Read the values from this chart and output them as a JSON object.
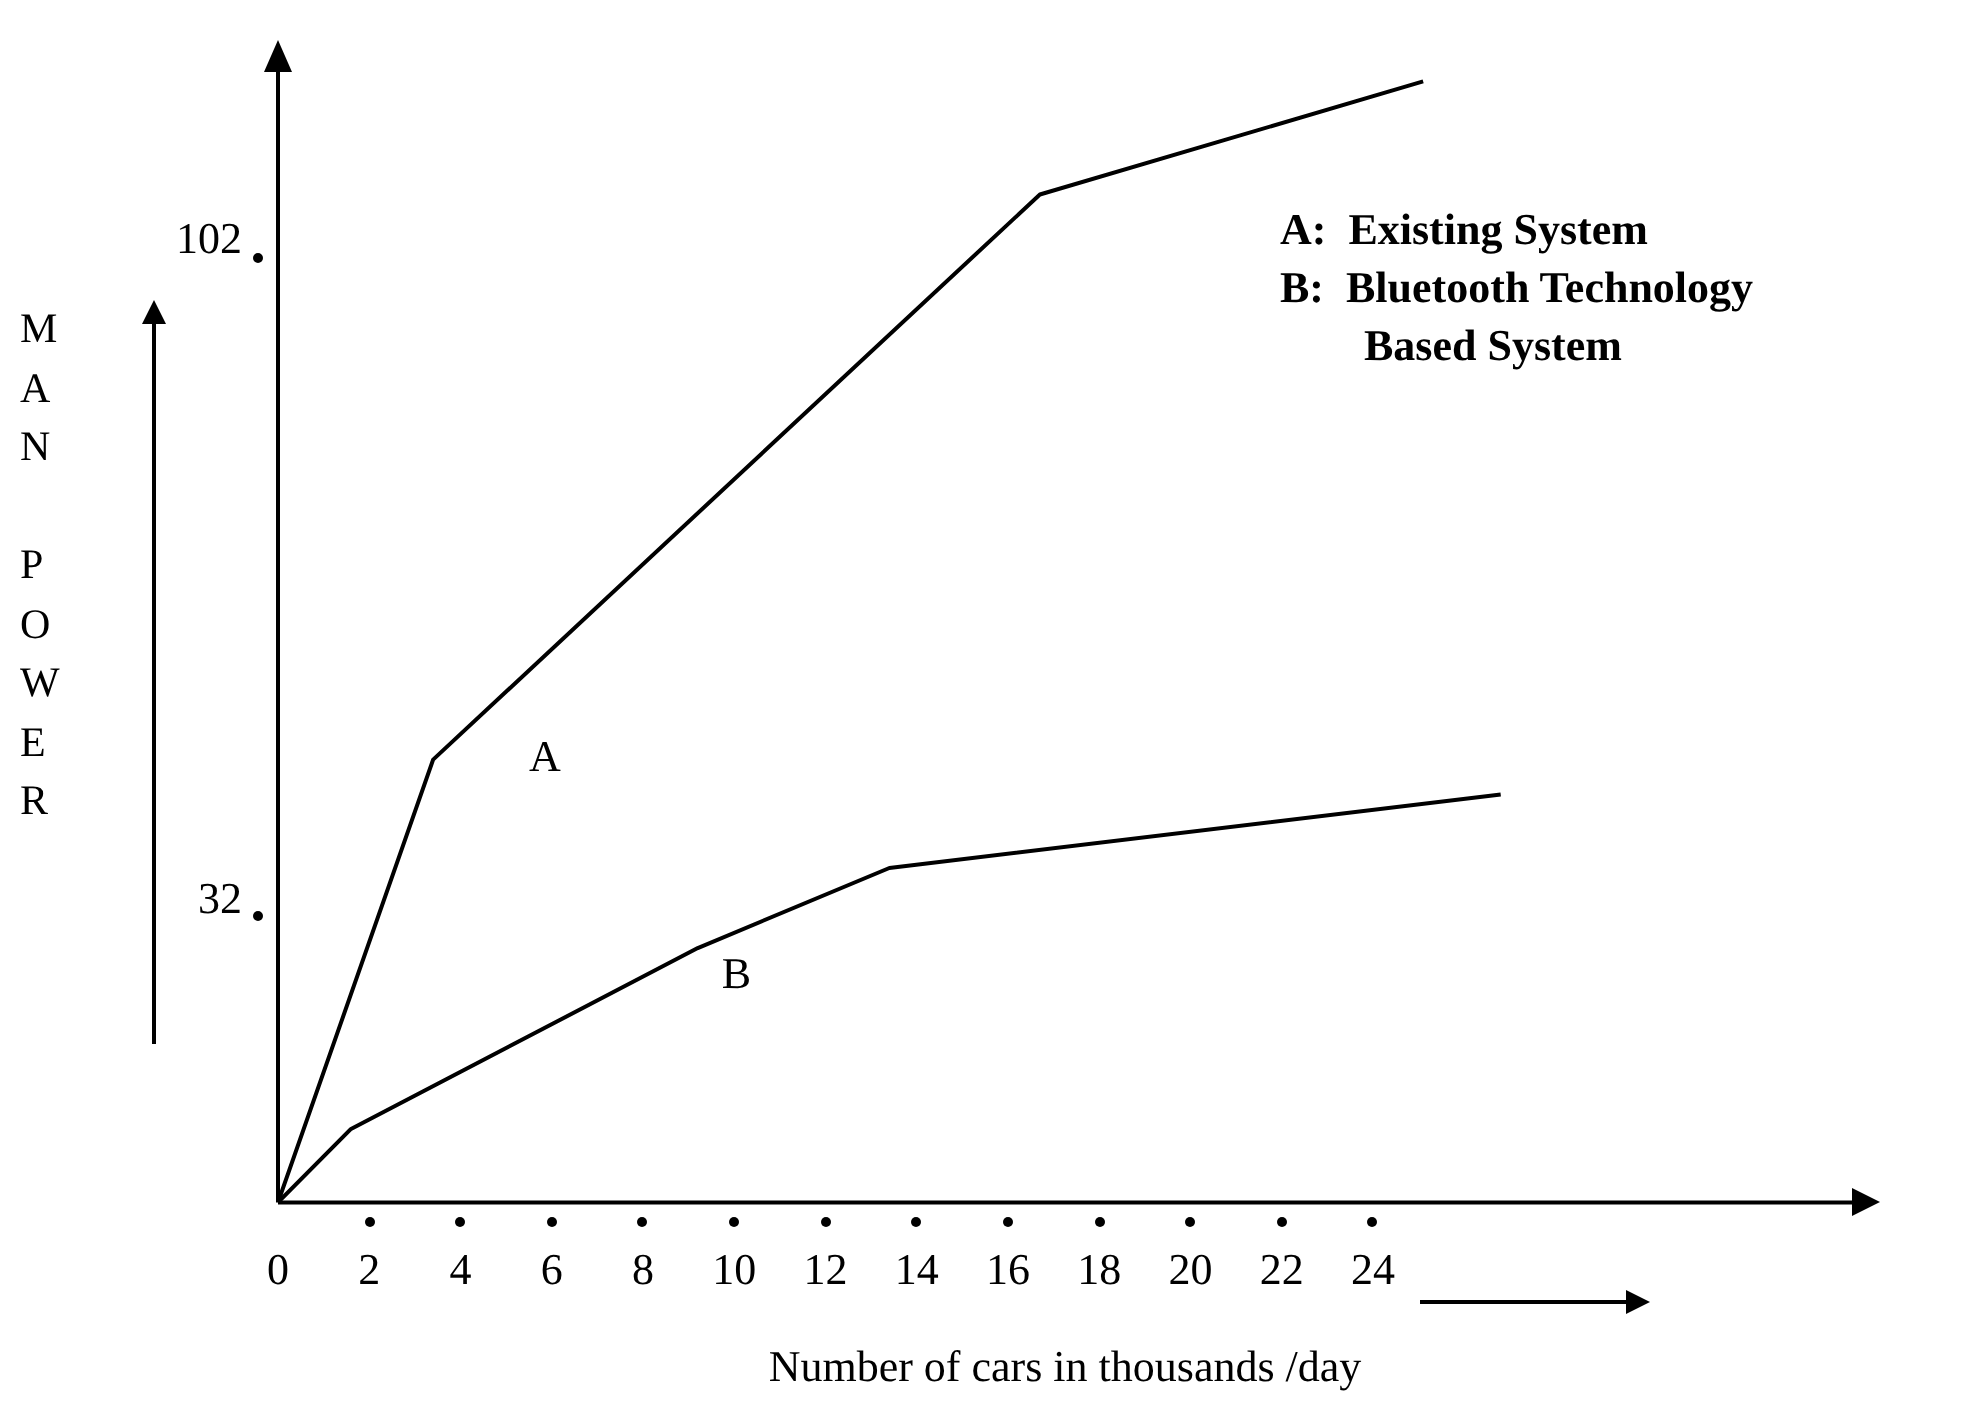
{
  "chart_data": {
    "type": "line",
    "xlabel": "Number of cars in thousands /day",
    "ylabel": "MAN POWER",
    "xlim": [
      0,
      34.5
    ],
    "xticks": [
      0,
      2,
      4,
      6,
      8,
      10,
      12,
      14,
      16,
      18,
      20,
      22,
      24
    ],
    "ylim": [
      0,
      120
    ],
    "yticks": [
      32,
      102
    ],
    "series": [
      {
        "name": "A",
        "color": "#000000",
        "x": [
          0,
          3.4,
          16.7,
          25.1
        ],
        "values": [
          0,
          47,
          107,
          119
        ]
      },
      {
        "name": "B",
        "color": "#000000",
        "x": [
          0,
          1.6,
          9.2,
          13.4,
          26.8
        ],
        "values": [
          0,
          7.8,
          27,
          35.5,
          43.3
        ]
      }
    ],
    "annotations": [
      "A:  Existing System",
      "B:  Bluetooth Technology\nBased System"
    ],
    "grid": false,
    "legend": false,
    "marker": "none",
    "line_style": "solid"
  }
}
